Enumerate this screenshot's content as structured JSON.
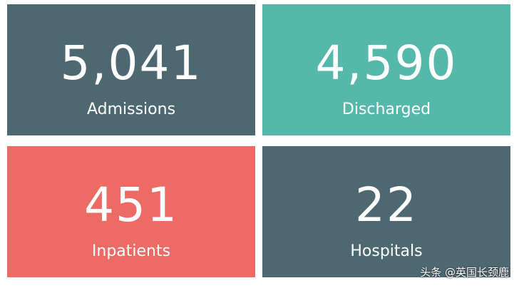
{
  "tiles": [
    {
      "value": "5,041",
      "label": "Admissions",
      "color": "#4e6872"
    },
    {
      "value": "4,590",
      "label": "Discharged",
      "color": "#55b8ab"
    },
    {
      "value": "451",
      "label": "Inpatients",
      "color": "#ec6b65"
    },
    {
      "value": "22",
      "label": "Hospitals",
      "color": "#4e6872"
    }
  ],
  "watermark": "头条 @英国长颈鹿"
}
